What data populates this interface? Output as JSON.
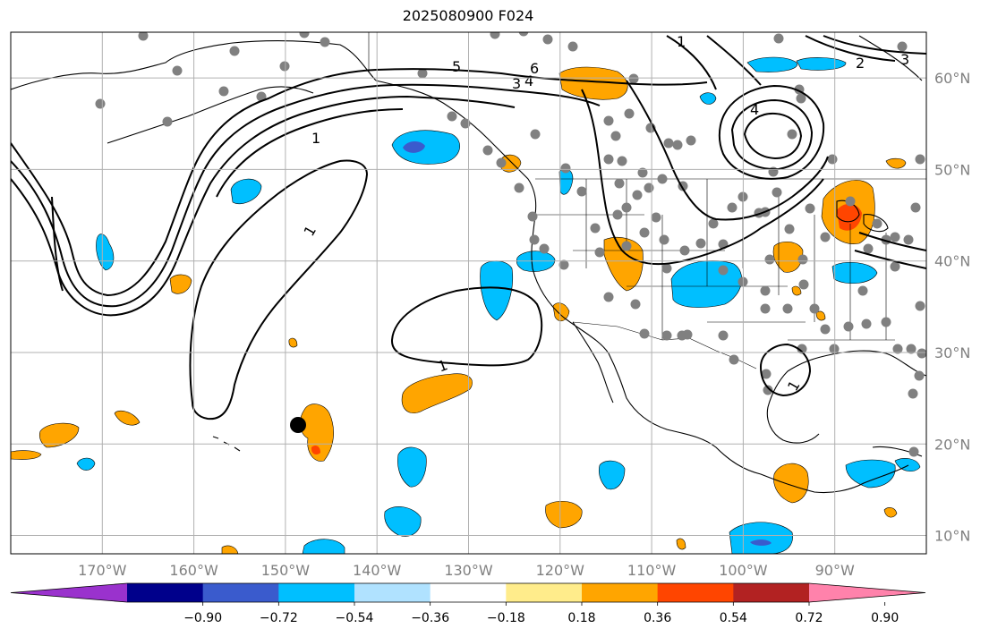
{
  "title": "2025080900 F024",
  "map": {
    "lon_range": [
      -180,
      -80
    ],
    "lat_range": [
      8,
      65
    ],
    "lon_ticks": [
      {
        "lon": -170,
        "label": "170°W"
      },
      {
        "lon": -160,
        "label": "160°W"
      },
      {
        "lon": -150,
        "label": "150°W"
      },
      {
        "lon": -140,
        "label": "140°W"
      },
      {
        "lon": -130,
        "label": "130°W"
      },
      {
        "lon": -120,
        "label": "120°W"
      },
      {
        "lon": -110,
        "label": "110°W"
      },
      {
        "lon": -100,
        "label": "100°W"
      },
      {
        "lon": -90,
        "label": "90°W"
      }
    ],
    "lat_ticks": [
      {
        "lat": 60,
        "label": "60°N"
      },
      {
        "lat": 50,
        "label": "50°N"
      },
      {
        "lat": 40,
        "label": "40°N"
      },
      {
        "lat": 30,
        "label": "30°N"
      },
      {
        "lat": 20,
        "label": "20°N"
      },
      {
        "lat": 10,
        "label": "10°N"
      }
    ],
    "contour_labels": [
      "1",
      "1",
      "1",
      "1",
      "3",
      "4",
      "5",
      "6",
      "2",
      "3",
      "4",
      "1"
    ],
    "highlight_point_color": "#000000",
    "station_color": "#808080",
    "grid_color": "#b0b0b0"
  },
  "colorbar": {
    "colors": [
      "#9a32cd",
      "#00008b",
      "#3a5bcd",
      "#00bfff",
      "#b0e2ff",
      "#ffffff",
      "#ffec8b",
      "#ffa500",
      "#ff4500",
      "#b22222",
      "#ff82ab"
    ],
    "tick_labels": [
      "−0.90",
      "−0.72",
      "−0.54",
      "−0.36",
      "−0.18",
      "0.18",
      "0.36",
      "0.54",
      "0.72",
      "0.90"
    ]
  }
}
